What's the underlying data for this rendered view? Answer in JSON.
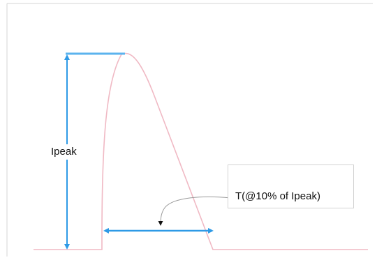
{
  "labels": {
    "ipeak": "Ipeak",
    "t_callout": "T(@10% of Ipeak)"
  },
  "colors": {
    "waveform": "#f0b9c4",
    "dimension_arrows": "#2e9ae6",
    "callout_border": "#d3d3d3",
    "frame": "#d6d6d6"
  }
}
